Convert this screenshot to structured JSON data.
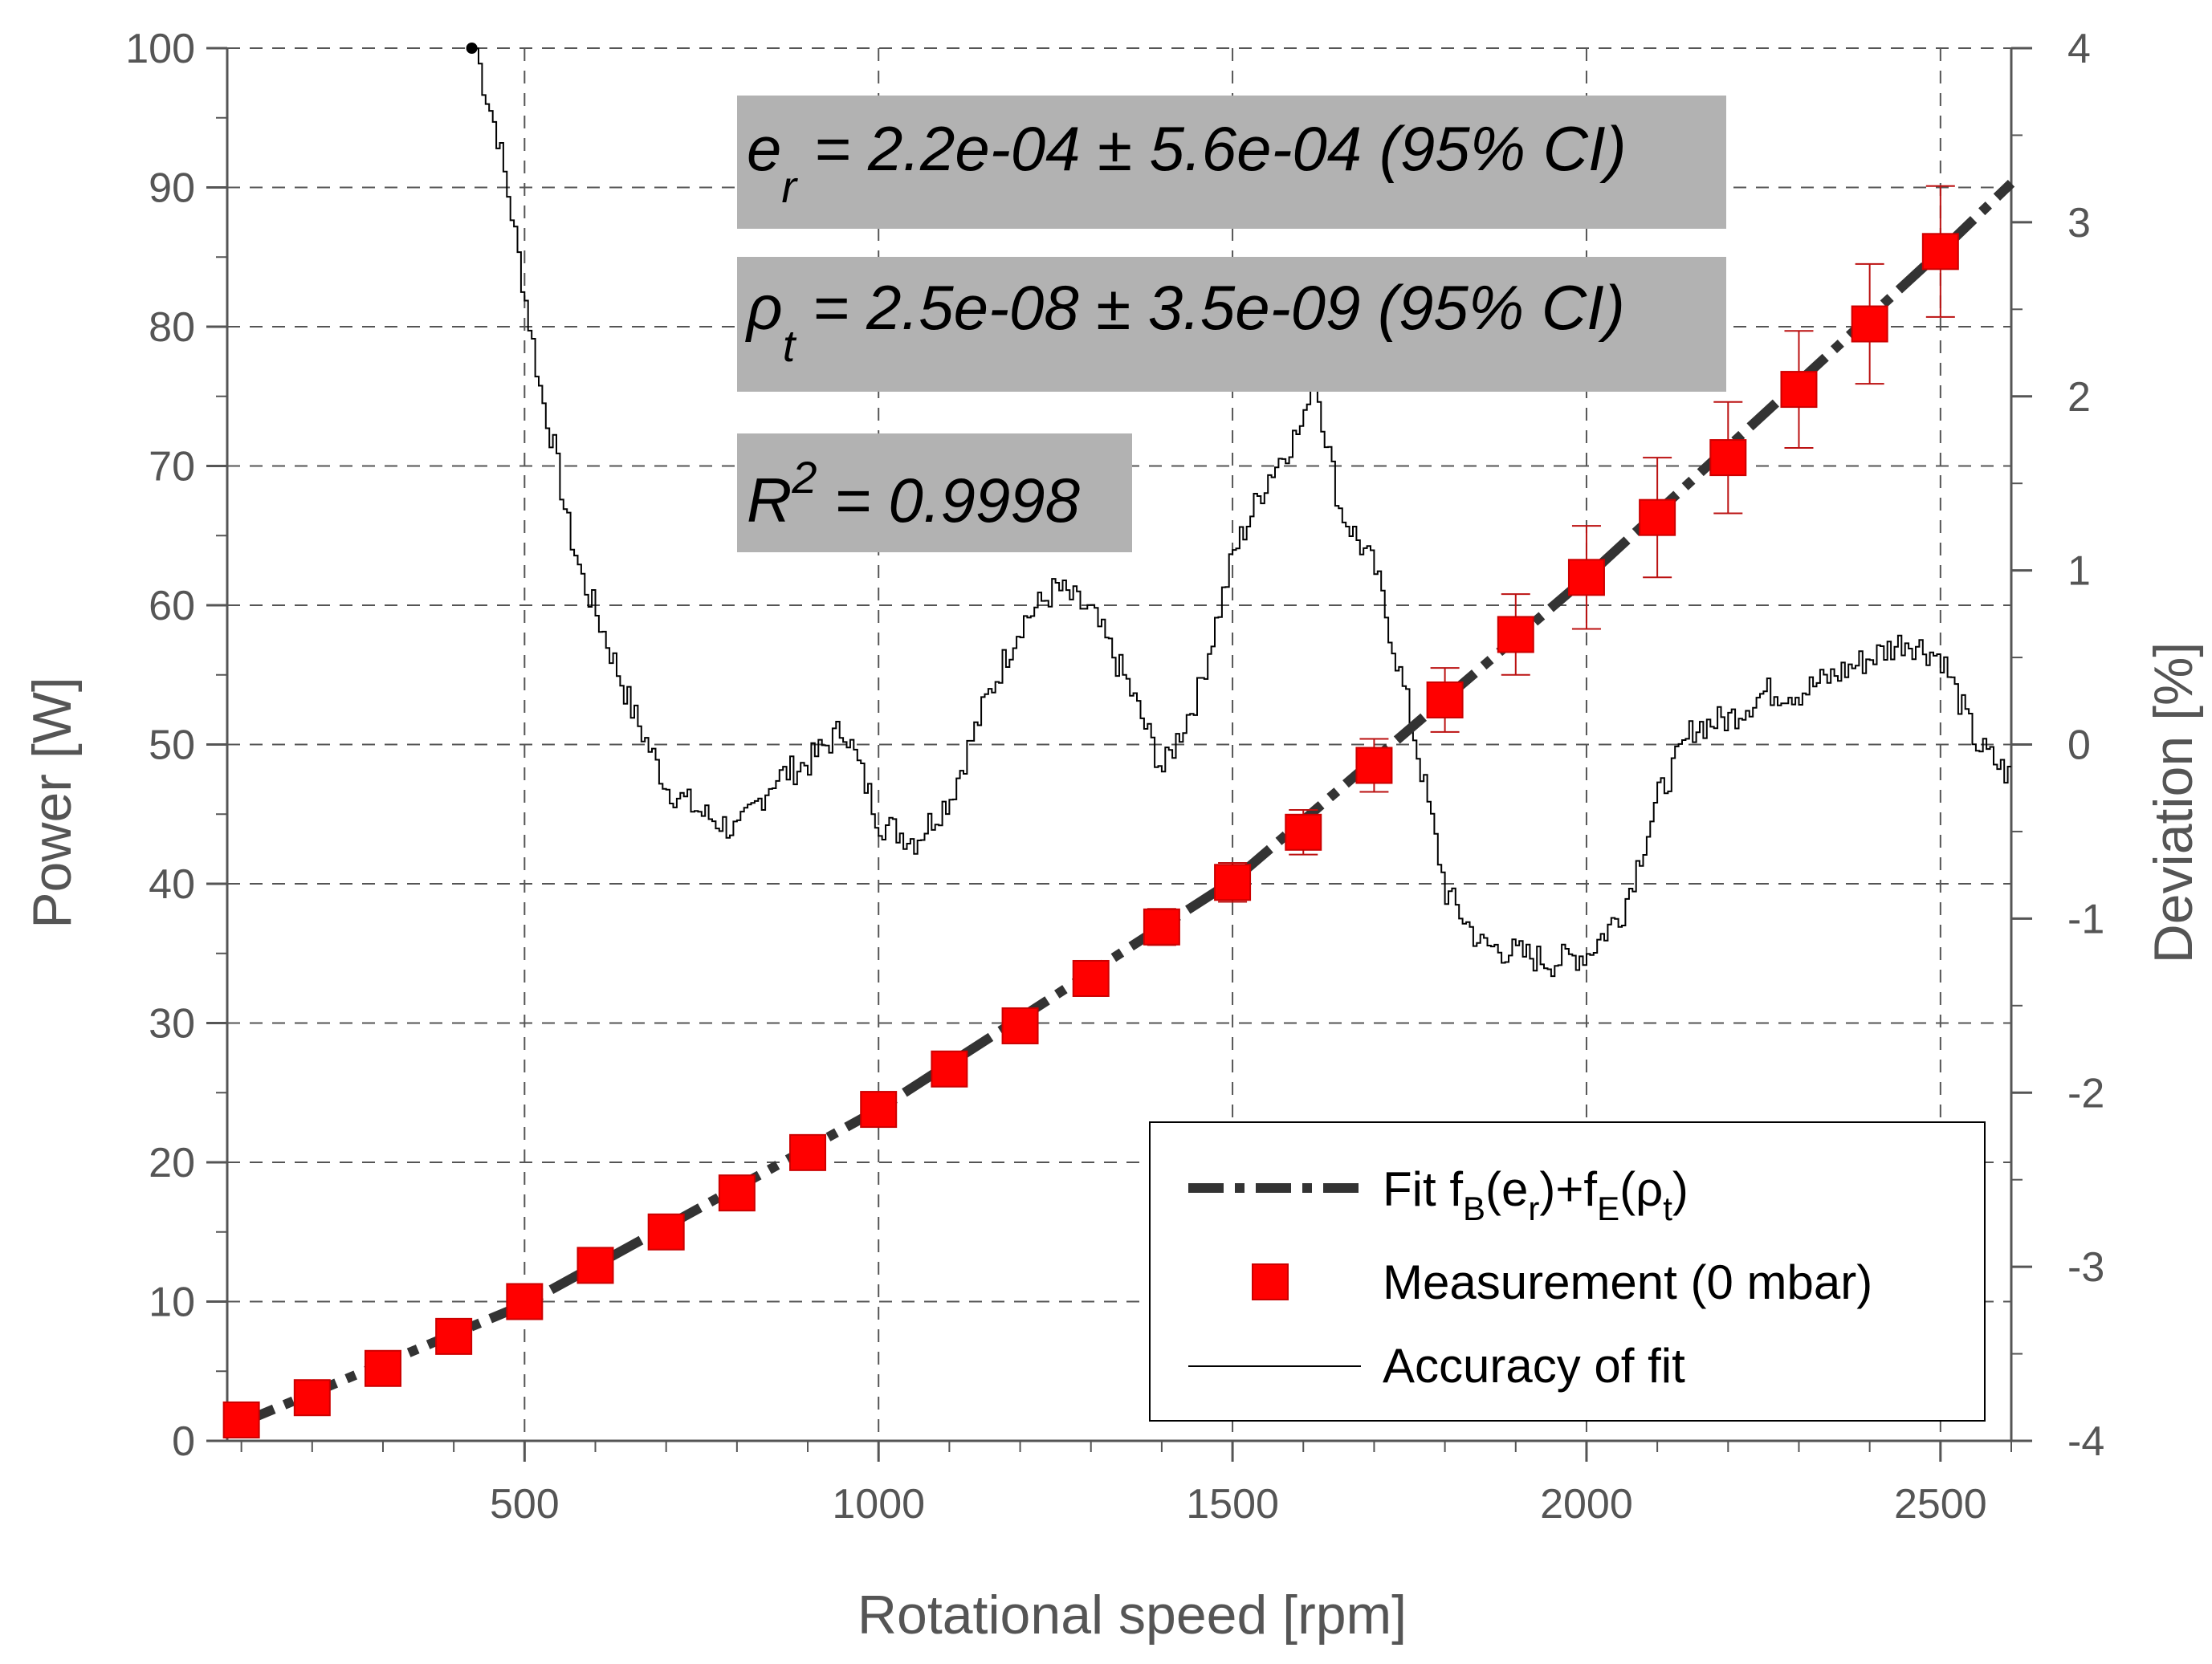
{
  "chart_data": {
    "type": "line",
    "xlabel": "Rotational speed [rpm]",
    "ylabel": "Power [W]",
    "y2label": "Deviation [%]",
    "xlim": [
      80,
      2600
    ],
    "ylim": [
      0,
      100
    ],
    "y2lim": [
      -4,
      4
    ],
    "xticks": [
      500,
      1000,
      1500,
      2000,
      2500
    ],
    "yticks": [
      0,
      10,
      20,
      30,
      40,
      50,
      60,
      70,
      80,
      90,
      100
    ],
    "y2ticks": [
      -4,
      -3,
      -2,
      -1,
      0,
      1,
      2,
      3,
      4
    ],
    "grid": true,
    "legend_position": "bottom-right",
    "annotations": {
      "er": {
        "symbol": "e",
        "sub": "r",
        "text": " = 2.2e-04 ± 5.6e-04 (95% CI)"
      },
      "rho": {
        "symbol": "ρ",
        "sub": "t",
        "text": " = 2.5e-08 ± 3.5e-09 (95% CI)"
      },
      "r2": {
        "symbol": "R",
        "sup": "2",
        "text": " = 0.9998"
      }
    },
    "legend": {
      "fit": {
        "t1": "Fit f",
        "s1": "B",
        "t2": "(e",
        "s2": "r",
        "t3": ")+f",
        "s3": "E",
        "t4": "(ρ",
        "s4": "t",
        "t5": ")"
      },
      "measurement": "Measurement (0 mbar)",
      "accuracy": "Accuracy of fit"
    },
    "series": [
      {
        "name": "Measurement (0 mbar)",
        "axis": "left",
        "marker": "square",
        "color": "#ff0000",
        "x": [
          100,
          200,
          300,
          400,
          500,
          600,
          700,
          800,
          900,
          1000,
          1100,
          1200,
          1300,
          1400,
          1500,
          1600,
          1700,
          1800,
          1900,
          2000,
          2100,
          2200,
          2300,
          2400,
          2500
        ],
        "y": [
          1.5,
          3.1,
          5.2,
          7.5,
          10.0,
          12.6,
          15.0,
          17.8,
          20.7,
          23.8,
          26.7,
          29.8,
          33.2,
          36.9,
          40.1,
          43.7,
          48.5,
          53.2,
          57.9,
          62.0,
          66.3,
          70.6,
          75.5,
          80.2,
          85.4
        ],
        "err": [
          0.3,
          0.3,
          0.3,
          0.3,
          0.4,
          0.5,
          0.5,
          0.6,
          0.6,
          0.8,
          0.9,
          1.0,
          1.1,
          1.3,
          1.4,
          1.6,
          1.9,
          2.3,
          2.9,
          3.7,
          4.3,
          4.0,
          4.2,
          4.3,
          4.7
        ]
      },
      {
        "name": "Fit fB(er)+fE(ρt)",
        "axis": "left",
        "style": "dash-dot",
        "color": "#333333",
        "x": [
          100,
          500,
          1000,
          1500,
          2000,
          2500,
          2600
        ],
        "y": [
          1.3,
          9.8,
          23.8,
          40.2,
          62.0,
          85.4,
          90.3
        ]
      },
      {
        "name": "Accuracy of fit",
        "axis": "right",
        "style": "step",
        "color": "#000000",
        "x": [
          430,
          440,
          460,
          480,
          500,
          520,
          540,
          560,
          580,
          600,
          650,
          700,
          750,
          800,
          850,
          900,
          950,
          1000,
          1050,
          1100,
          1150,
          1200,
          1250,
          1300,
          1350,
          1400,
          1450,
          1500,
          1550,
          1600,
          1610,
          1650,
          1700,
          1750,
          1800,
          1850,
          1900,
          1950,
          2000,
          2050,
          2100,
          2150,
          2200,
          2250,
          2300,
          2350,
          2400,
          2450,
          2500,
          2550,
          2600
        ],
        "y": [
          4.0,
          3.8,
          3.5,
          3.05,
          2.55,
          2.05,
          1.7,
          1.25,
          0.95,
          0.75,
          0.2,
          -0.25,
          -0.4,
          -0.5,
          -0.2,
          -0.1,
          0.1,
          -0.45,
          -0.55,
          -0.3,
          0.25,
          0.7,
          0.9,
          0.75,
          0.35,
          -0.15,
          0.3,
          1.1,
          1.55,
          1.85,
          2.2,
          1.35,
          1.0,
          0.15,
          -0.85,
          -1.15,
          -1.2,
          -1.25,
          -1.2,
          -0.95,
          -0.3,
          0.1,
          0.15,
          0.3,
          0.3,
          0.4,
          0.5,
          0.6,
          0.5,
          0.0,
          -0.2
        ]
      }
    ]
  }
}
